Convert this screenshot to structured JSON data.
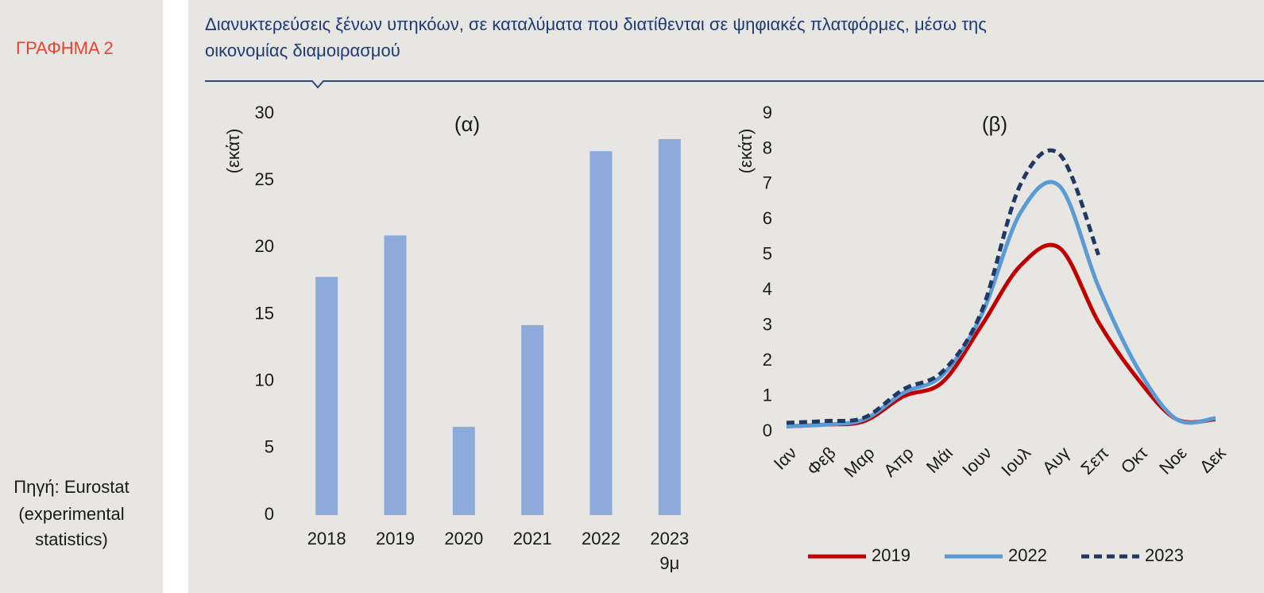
{
  "header": {
    "label": "ΓΡΑΦΗΜΑ 2",
    "title_lines": [
      "Διανυκτερεύσεις ξένων υπηκόων, σε καταλύματα που διατίθενται σε ψηφιακές πλατφόρμες, μέσω της",
      "οικονομίας διαμοιρασμού"
    ]
  },
  "source": [
    "Πηγή: Eurostat",
    "(experimental",
    "statistics)"
  ],
  "chart_data": [
    {
      "type": "bar",
      "subtitle": "(α)",
      "y_label": "(εκάτ)",
      "categories": [
        "2018",
        "2019",
        "2020",
        "2021",
        "2022",
        "2023"
      ],
      "annotation": "9μ",
      "values": [
        17.8,
        20.9,
        6.6,
        14.2,
        27.2,
        28.1
      ],
      "color": "#8eaadb",
      "ylim": [
        0,
        30
      ],
      "yticks": [
        0,
        5,
        10,
        15,
        20,
        25,
        30
      ]
    },
    {
      "type": "line",
      "subtitle": "(β)",
      "y_label": "(εκάτ)",
      "categories": [
        "Ιαν",
        "Φεβ",
        "Μαρ",
        "Απρ",
        "Μάι",
        "Ιουν",
        "Ιουλ",
        "Αυγ",
        "Σεπ",
        "Οκτ",
        "Νοε",
        "Δεκ"
      ],
      "series": [
        {
          "name": "2019",
          "color": "#c00000",
          "dashed": false,
          "values": [
            0.15,
            0.2,
            0.3,
            1.0,
            1.4,
            3.0,
            4.7,
            5.2,
            3.1,
            1.5,
            0.35,
            0.35
          ]
        },
        {
          "name": "2022",
          "color": "#5b9bd5",
          "dashed": false,
          "values": [
            0.15,
            0.2,
            0.35,
            1.1,
            1.6,
            3.3,
            6.2,
            6.95,
            4.1,
            1.8,
            0.35,
            0.38
          ]
        },
        {
          "name": "2023",
          "color": "#1f3864",
          "dashed": true,
          "values": [
            0.25,
            0.3,
            0.4,
            1.2,
            1.7,
            3.4,
            7.0,
            7.85,
            5.0,
            null,
            null,
            null
          ]
        }
      ],
      "ylim": [
        0,
        9
      ],
      "yticks": [
        0,
        1,
        2,
        3,
        4,
        5,
        6,
        7,
        8,
        9
      ],
      "legend": "bottom"
    }
  ]
}
